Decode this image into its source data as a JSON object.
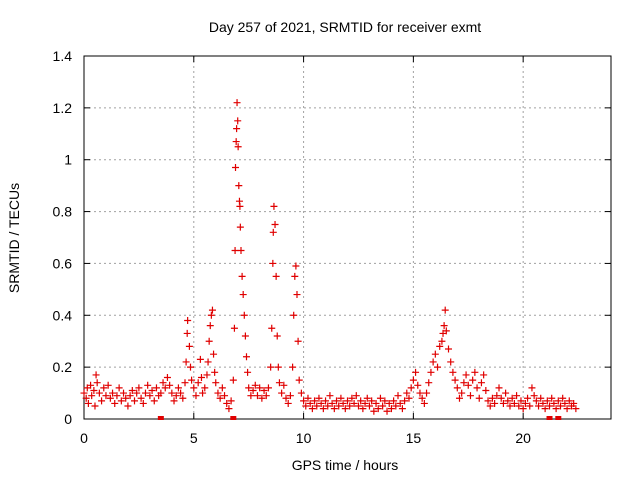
{
  "chart_data": {
    "type": "scatter",
    "title": "Day 257 of 2021, SRMTID for receiver exmt",
    "xlabel": "GPS time / hours",
    "ylabel": "SRMTID / TECUs",
    "xlim": [
      0,
      24
    ],
    "ylim": [
      0,
      1.4
    ],
    "xticks": [
      0,
      5,
      10,
      15,
      20
    ],
    "yticks": [
      0,
      0.2,
      0.4,
      0.6,
      0.8,
      1,
      1.2,
      1.4
    ],
    "xtick_labels": [
      "0",
      "5",
      "10",
      "15",
      "20"
    ],
    "ytick_labels": [
      "0",
      "0.2",
      "0.4",
      "0.6",
      "0.8",
      "1",
      "1.2",
      "1.4"
    ],
    "grid": true,
    "marker": "+",
    "color": "#e00000",
    "series": [
      {
        "name": "SRMTID",
        "points": [
          [
            0.0,
            0.1
          ],
          [
            0.1,
            0.08
          ],
          [
            0.15,
            0.12
          ],
          [
            0.2,
            0.06
          ],
          [
            0.3,
            0.13
          ],
          [
            0.35,
            0.09
          ],
          [
            0.45,
            0.11
          ],
          [
            0.5,
            0.05
          ],
          [
            0.55,
            0.17
          ],
          [
            0.6,
            0.14
          ],
          [
            0.7,
            0.1
          ],
          [
            0.8,
            0.07
          ],
          [
            0.9,
            0.12
          ],
          [
            1.0,
            0.09
          ],
          [
            1.1,
            0.13
          ],
          [
            1.2,
            0.08
          ],
          [
            1.3,
            0.1
          ],
          [
            1.4,
            0.06
          ],
          [
            1.5,
            0.09
          ],
          [
            1.6,
            0.12
          ],
          [
            1.7,
            0.07
          ],
          [
            1.8,
            0.1
          ],
          [
            1.9,
            0.08
          ],
          [
            2.0,
            0.05
          ],
          [
            2.1,
            0.09
          ],
          [
            2.2,
            0.11
          ],
          [
            2.3,
            0.07
          ],
          [
            2.4,
            0.1
          ],
          [
            2.5,
            0.12
          ],
          [
            2.6,
            0.08
          ],
          [
            2.7,
            0.06
          ],
          [
            2.8,
            0.1
          ],
          [
            2.9,
            0.13
          ],
          [
            3.0,
            0.09
          ],
          [
            3.1,
            0.11
          ],
          [
            3.2,
            0.07
          ],
          [
            3.3,
            0.12
          ],
          [
            3.4,
            0.09
          ],
          [
            3.5,
            0.1
          ],
          [
            3.6,
            0.14
          ],
          [
            3.7,
            0.12
          ],
          [
            3.8,
            0.16
          ],
          [
            3.9,
            0.13
          ],
          [
            4.0,
            0.1
          ],
          [
            4.1,
            0.07
          ],
          [
            4.2,
            0.09
          ],
          [
            4.3,
            0.12
          ],
          [
            4.4,
            0.1
          ],
          [
            4.5,
            0.08
          ],
          [
            4.6,
            0.14
          ],
          [
            4.65,
            0.22
          ],
          [
            4.7,
            0.33
          ],
          [
            4.72,
            0.38
          ],
          [
            4.8,
            0.28
          ],
          [
            4.85,
            0.2
          ],
          [
            4.9,
            0.15
          ],
          [
            5.0,
            0.12
          ],
          [
            5.1,
            0.09
          ],
          [
            5.2,
            0.14
          ],
          [
            5.3,
            0.23
          ],
          [
            5.35,
            0.16
          ],
          [
            5.4,
            0.1
          ],
          [
            5.5,
            0.12
          ],
          [
            5.6,
            0.17
          ],
          [
            5.65,
            0.22
          ],
          [
            5.7,
            0.3
          ],
          [
            5.75,
            0.36
          ],
          [
            5.8,
            0.4
          ],
          [
            5.85,
            0.42
          ],
          [
            5.9,
            0.25
          ],
          [
            5.95,
            0.18
          ],
          [
            6.0,
            0.14
          ],
          [
            6.1,
            0.1
          ],
          [
            6.2,
            0.08
          ],
          [
            6.3,
            0.12
          ],
          [
            6.4,
            0.09
          ],
          [
            6.5,
            0.06
          ],
          [
            6.6,
            0.04
          ],
          [
            6.7,
            0.07
          ],
          [
            6.8,
            0.15
          ],
          [
            6.85,
            0.35
          ],
          [
            6.88,
            0.65
          ],
          [
            6.9,
            0.97
          ],
          [
            6.93,
            1.07
          ],
          [
            6.95,
            1.12
          ],
          [
            6.97,
            1.22
          ],
          [
            7.0,
            1.15
          ],
          [
            7.02,
            1.05
          ],
          [
            7.05,
            0.9
          ],
          [
            7.08,
            0.84
          ],
          [
            7.1,
            0.82
          ],
          [
            7.12,
            0.74
          ],
          [
            7.15,
            0.65
          ],
          [
            7.2,
            0.55
          ],
          [
            7.25,
            0.48
          ],
          [
            7.3,
            0.4
          ],
          [
            7.35,
            0.32
          ],
          [
            7.4,
            0.24
          ],
          [
            7.45,
            0.18
          ],
          [
            7.5,
            0.12
          ],
          [
            7.6,
            0.09
          ],
          [
            7.7,
            0.11
          ],
          [
            7.8,
            0.13
          ],
          [
            7.9,
            0.09
          ],
          [
            8.0,
            0.12
          ],
          [
            8.1,
            0.08
          ],
          [
            8.2,
            0.11
          ],
          [
            8.3,
            0.09
          ],
          [
            8.4,
            0.12
          ],
          [
            8.5,
            0.2
          ],
          [
            8.55,
            0.35
          ],
          [
            8.6,
            0.6
          ],
          [
            8.62,
            0.72
          ],
          [
            8.65,
            0.82
          ],
          [
            8.7,
            0.75
          ],
          [
            8.75,
            0.55
          ],
          [
            8.8,
            0.32
          ],
          [
            8.85,
            0.2
          ],
          [
            8.9,
            0.14
          ],
          [
            9.0,
            0.1
          ],
          [
            9.1,
            0.13
          ],
          [
            9.2,
            0.08
          ],
          [
            9.3,
            0.06
          ],
          [
            9.4,
            0.09
          ],
          [
            9.5,
            0.2
          ],
          [
            9.55,
            0.4
          ],
          [
            9.6,
            0.55
          ],
          [
            9.65,
            0.59
          ],
          [
            9.7,
            0.48
          ],
          [
            9.75,
            0.3
          ],
          [
            9.8,
            0.15
          ],
          [
            9.9,
            0.1
          ],
          [
            10.0,
            0.07
          ],
          [
            10.1,
            0.05
          ],
          [
            10.2,
            0.08
          ],
          [
            10.3,
            0.06
          ],
          [
            10.4,
            0.04
          ],
          [
            10.5,
            0.07
          ],
          [
            10.6,
            0.05
          ],
          [
            10.7,
            0.08
          ],
          [
            10.8,
            0.06
          ],
          [
            10.9,
            0.04
          ],
          [
            11.0,
            0.07
          ],
          [
            11.1,
            0.05
          ],
          [
            11.2,
            0.09
          ],
          [
            11.3,
            0.06
          ],
          [
            11.4,
            0.04
          ],
          [
            11.5,
            0.07
          ],
          [
            11.6,
            0.05
          ],
          [
            11.7,
            0.08
          ],
          [
            11.8,
            0.06
          ],
          [
            11.9,
            0.04
          ],
          [
            12.0,
            0.07
          ],
          [
            12.1,
            0.05
          ],
          [
            12.2,
            0.08
          ],
          [
            12.3,
            0.06
          ],
          [
            12.4,
            0.09
          ],
          [
            12.5,
            0.05
          ],
          [
            12.6,
            0.07
          ],
          [
            12.7,
            0.04
          ],
          [
            12.8,
            0.06
          ],
          [
            12.9,
            0.08
          ],
          [
            13.0,
            0.05
          ],
          [
            13.1,
            0.07
          ],
          [
            13.2,
            0.03
          ],
          [
            13.3,
            0.06
          ],
          [
            13.4,
            0.04
          ],
          [
            13.5,
            0.08
          ],
          [
            13.6,
            0.05
          ],
          [
            13.7,
            0.07
          ],
          [
            13.8,
            0.03
          ],
          [
            13.9,
            0.06
          ],
          [
            14.0,
            0.04
          ],
          [
            14.1,
            0.07
          ],
          [
            14.2,
            0.05
          ],
          [
            14.3,
            0.09
          ],
          [
            14.4,
            0.06
          ],
          [
            14.5,
            0.04
          ],
          [
            14.6,
            0.07
          ],
          [
            14.7,
            0.1
          ],
          [
            14.8,
            0.08
          ],
          [
            14.9,
            0.12
          ],
          [
            15.0,
            0.15
          ],
          [
            15.1,
            0.18
          ],
          [
            15.2,
            0.13
          ],
          [
            15.3,
            0.1
          ],
          [
            15.4,
            0.08
          ],
          [
            15.5,
            0.06
          ],
          [
            15.6,
            0.1
          ],
          [
            15.7,
            0.14
          ],
          [
            15.8,
            0.18
          ],
          [
            15.9,
            0.22
          ],
          [
            16.0,
            0.25
          ],
          [
            16.1,
            0.2
          ],
          [
            16.2,
            0.28
          ],
          [
            16.3,
            0.3
          ],
          [
            16.35,
            0.33
          ],
          [
            16.4,
            0.36
          ],
          [
            16.45,
            0.42
          ],
          [
            16.5,
            0.34
          ],
          [
            16.6,
            0.27
          ],
          [
            16.7,
            0.22
          ],
          [
            16.8,
            0.18
          ],
          [
            16.9,
            0.15
          ],
          [
            17.0,
            0.12
          ],
          [
            17.1,
            0.08
          ],
          [
            17.2,
            0.1
          ],
          [
            17.3,
            0.14
          ],
          [
            17.4,
            0.17
          ],
          [
            17.5,
            0.13
          ],
          [
            17.6,
            0.09
          ],
          [
            17.7,
            0.15
          ],
          [
            17.8,
            0.18
          ],
          [
            17.9,
            0.12
          ],
          [
            18.0,
            0.08
          ],
          [
            18.1,
            0.14
          ],
          [
            18.2,
            0.17
          ],
          [
            18.3,
            0.11
          ],
          [
            18.4,
            0.07
          ],
          [
            18.5,
            0.05
          ],
          [
            18.6,
            0.08
          ],
          [
            18.7,
            0.06
          ],
          [
            18.8,
            0.09
          ],
          [
            18.9,
            0.12
          ],
          [
            19.0,
            0.08
          ],
          [
            19.1,
            0.06
          ],
          [
            19.2,
            0.1
          ],
          [
            19.3,
            0.07
          ],
          [
            19.4,
            0.05
          ],
          [
            19.5,
            0.08
          ],
          [
            19.6,
            0.06
          ],
          [
            19.7,
            0.09
          ],
          [
            19.8,
            0.05
          ],
          [
            19.9,
            0.07
          ],
          [
            20.0,
            0.04
          ],
          [
            20.1,
            0.06
          ],
          [
            20.2,
            0.08
          ],
          [
            20.3,
            0.05
          ],
          [
            20.4,
            0.12
          ],
          [
            20.5,
            0.09
          ],
          [
            20.6,
            0.07
          ],
          [
            20.7,
            0.05
          ],
          [
            20.8,
            0.08
          ],
          [
            20.9,
            0.06
          ],
          [
            21.0,
            0.04
          ],
          [
            21.1,
            0.07
          ],
          [
            21.2,
            0.05
          ],
          [
            21.3,
            0.08
          ],
          [
            21.4,
            0.06
          ],
          [
            21.5,
            0.04
          ],
          [
            21.6,
            0.07
          ],
          [
            21.7,
            0.05
          ],
          [
            21.8,
            0.08
          ],
          [
            21.9,
            0.06
          ],
          [
            22.0,
            0.04
          ],
          [
            22.1,
            0.07
          ],
          [
            22.2,
            0.05
          ],
          [
            22.3,
            0.06
          ],
          [
            22.4,
            0.04
          ]
        ],
        "zero_points": [
          3.5,
          6.8,
          21.2,
          21.6
        ]
      }
    ]
  }
}
